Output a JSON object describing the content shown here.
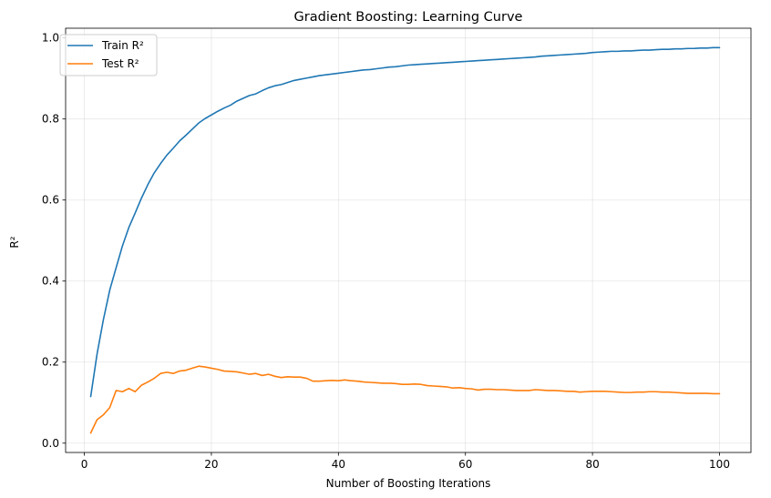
{
  "chart_data": {
    "type": "line",
    "title": "Gradient Boosting: Learning Curve",
    "xlabel": "Number of Boosting Iterations",
    "ylabel": "R²",
    "xlim": [
      -2.95,
      104.95
    ],
    "ylim": [
      -0.023,
      1.024
    ],
    "xticks": [
      0,
      20,
      40,
      60,
      80,
      100
    ],
    "yticks": [
      0.0,
      0.2,
      0.4,
      0.6,
      0.8,
      1.0
    ],
    "xtick_labels": [
      "0",
      "20",
      "40",
      "60",
      "80",
      "100"
    ],
    "ytick_labels": [
      "0.0",
      "0.2",
      "0.4",
      "0.6",
      "0.8",
      "1.0"
    ],
    "grid": true,
    "legend_position": "top-left",
    "x": [
      1,
      2,
      3,
      4,
      5,
      6,
      7,
      8,
      9,
      10,
      11,
      12,
      13,
      14,
      15,
      16,
      17,
      18,
      19,
      20,
      21,
      22,
      23,
      24,
      25,
      26,
      27,
      28,
      29,
      30,
      31,
      32,
      33,
      34,
      35,
      36,
      37,
      38,
      39,
      40,
      41,
      42,
      43,
      44,
      45,
      46,
      47,
      48,
      49,
      50,
      51,
      52,
      53,
      54,
      55,
      56,
      57,
      58,
      59,
      60,
      61,
      62,
      63,
      64,
      65,
      66,
      67,
      68,
      69,
      70,
      71,
      72,
      73,
      74,
      75,
      76,
      77,
      78,
      79,
      80,
      81,
      82,
      83,
      84,
      85,
      86,
      87,
      88,
      89,
      90,
      91,
      92,
      93,
      94,
      95,
      96,
      97,
      98,
      99,
      100
    ],
    "series": [
      {
        "name": "Train R²",
        "color": "#1f77b4",
        "values": [
          0.115,
          0.22,
          0.305,
          0.378,
          0.433,
          0.487,
          0.532,
          0.568,
          0.605,
          0.638,
          0.667,
          0.69,
          0.711,
          0.728,
          0.746,
          0.76,
          0.775,
          0.79,
          0.801,
          0.81,
          0.819,
          0.827,
          0.834,
          0.844,
          0.851,
          0.858,
          0.862,
          0.87,
          0.877,
          0.882,
          0.885,
          0.89,
          0.895,
          0.898,
          0.901,
          0.904,
          0.907,
          0.909,
          0.911,
          0.913,
          0.915,
          0.917,
          0.919,
          0.921,
          0.922,
          0.924,
          0.926,
          0.928,
          0.929,
          0.931,
          0.933,
          0.934,
          0.935,
          0.936,
          0.937,
          0.938,
          0.939,
          0.94,
          0.941,
          0.942,
          0.943,
          0.944,
          0.945,
          0.946,
          0.947,
          0.948,
          0.949,
          0.95,
          0.951,
          0.952,
          0.953,
          0.955,
          0.956,
          0.957,
          0.958,
          0.959,
          0.96,
          0.961,
          0.962,
          0.964,
          0.965,
          0.966,
          0.967,
          0.967,
          0.968,
          0.968,
          0.969,
          0.97,
          0.97,
          0.971,
          0.972,
          0.972,
          0.973,
          0.973,
          0.974,
          0.974,
          0.975,
          0.975,
          0.976,
          0.976
        ]
      },
      {
        "name": "Test R²",
        "color": "#ff7f0e",
        "values": [
          0.025,
          0.058,
          0.07,
          0.088,
          0.13,
          0.127,
          0.135,
          0.127,
          0.143,
          0.151,
          0.16,
          0.172,
          0.175,
          0.172,
          0.178,
          0.18,
          0.185,
          0.19,
          0.188,
          0.185,
          0.182,
          0.178,
          0.177,
          0.176,
          0.173,
          0.17,
          0.172,
          0.167,
          0.17,
          0.165,
          0.162,
          0.164,
          0.163,
          0.163,
          0.16,
          0.153,
          0.153,
          0.154,
          0.155,
          0.154,
          0.156,
          0.154,
          0.153,
          0.151,
          0.15,
          0.149,
          0.148,
          0.148,
          0.147,
          0.145,
          0.145,
          0.146,
          0.145,
          0.142,
          0.141,
          0.14,
          0.139,
          0.136,
          0.137,
          0.135,
          0.134,
          0.131,
          0.133,
          0.133,
          0.132,
          0.132,
          0.131,
          0.13,
          0.13,
          0.13,
          0.132,
          0.131,
          0.13,
          0.13,
          0.129,
          0.128,
          0.128,
          0.126,
          0.127,
          0.128,
          0.128,
          0.128,
          0.127,
          0.126,
          0.125,
          0.125,
          0.126,
          0.126,
          0.127,
          0.127,
          0.126,
          0.126,
          0.125,
          0.124,
          0.123,
          0.123,
          0.123,
          0.123,
          0.122,
          0.122
        ]
      }
    ]
  }
}
